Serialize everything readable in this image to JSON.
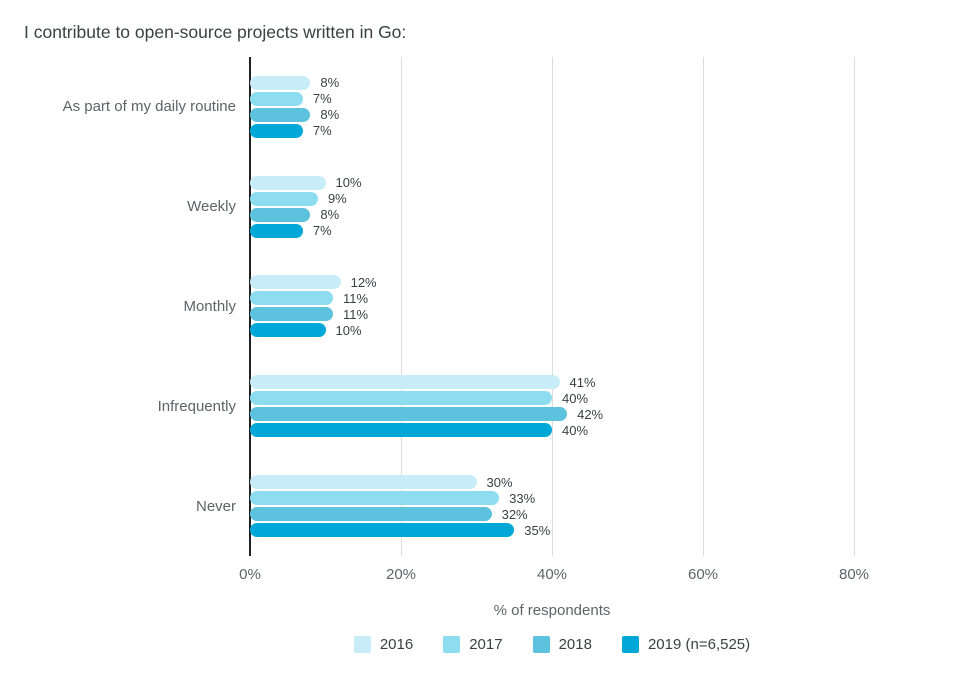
{
  "chart_data": {
    "type": "bar",
    "orientation": "horizontal",
    "title": "I contribute to open-source projects written in Go:",
    "categories": [
      "As part of my daily routine",
      "Weekly",
      "Monthly",
      "Infrequently",
      "Never"
    ],
    "series": [
      {
        "name": "2016",
        "color": "#c8edf8",
        "values": [
          8,
          10,
          12,
          41,
          30
        ]
      },
      {
        "name": "2017",
        "color": "#8edcef",
        "values": [
          7,
          9,
          11,
          40,
          33
        ]
      },
      {
        "name": "2018",
        "color": "#5cc2dd",
        "values": [
          8,
          8,
          11,
          42,
          32
        ]
      },
      {
        "name": "2019 (n=6,525)",
        "color": "#00a8d8",
        "values": [
          7,
          7,
          10,
          40,
          35
        ]
      }
    ],
    "xlabel": "% of respondents",
    "x_tick_labels": [
      "0%",
      "20%",
      "40%",
      "60%",
      "80%"
    ],
    "xlim": [
      0,
      80
    ],
    "grid": true,
    "legend_position": "bottom",
    "value_suffix": "%",
    "axis_color": "#212121",
    "gridline_color": "#dadce0"
  }
}
